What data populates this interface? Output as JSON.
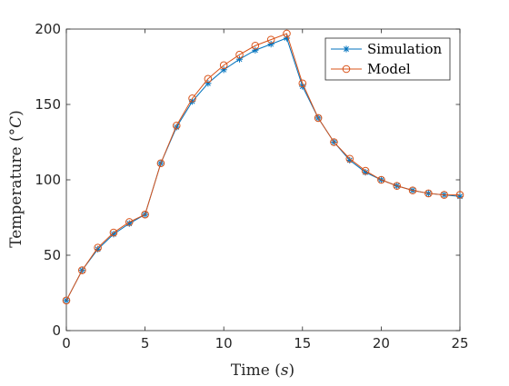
{
  "chart_data": {
    "type": "line",
    "title": "",
    "xlabel": "Time (s)",
    "xlabel_parts": {
      "main": "Time (",
      "unit": "s",
      "close": ")"
    },
    "ylabel": "Temperature (°C)",
    "ylabel_parts": {
      "main": "Temperature (",
      "deg": "°",
      "unit": "C",
      "close": ")"
    },
    "xlim": [
      0,
      25
    ],
    "ylim": [
      0,
      200
    ],
    "xticks": [
      0,
      5,
      10,
      15,
      20,
      25
    ],
    "yticks": [
      0,
      50,
      100,
      150,
      200
    ],
    "grid": false,
    "legend_position": "top-right",
    "x": [
      0,
      1,
      2,
      3,
      4,
      5,
      6,
      7,
      8,
      9,
      10,
      11,
      12,
      13,
      14,
      15,
      16,
      17,
      18,
      19,
      20,
      21,
      22,
      23,
      24,
      25
    ],
    "series": [
      {
        "name": "Simulation",
        "color": "#0072BD",
        "marker": "asterisk",
        "values": [
          20,
          40,
          54,
          64,
          71,
          77,
          111,
          135,
          152,
          164,
          173,
          180,
          186,
          190,
          194,
          162,
          141,
          125,
          113,
          105,
          100,
          96,
          93,
          91,
          90,
          89
        ]
      },
      {
        "name": "Model",
        "color": "#D95319",
        "marker": "circle",
        "values": [
          20,
          40,
          55,
          65,
          72,
          77,
          111,
          136,
          154,
          167,
          176,
          183,
          189,
          193,
          197,
          164,
          141,
          125,
          114,
          106,
          100,
          96,
          93,
          91,
          90,
          90
        ]
      }
    ]
  }
}
